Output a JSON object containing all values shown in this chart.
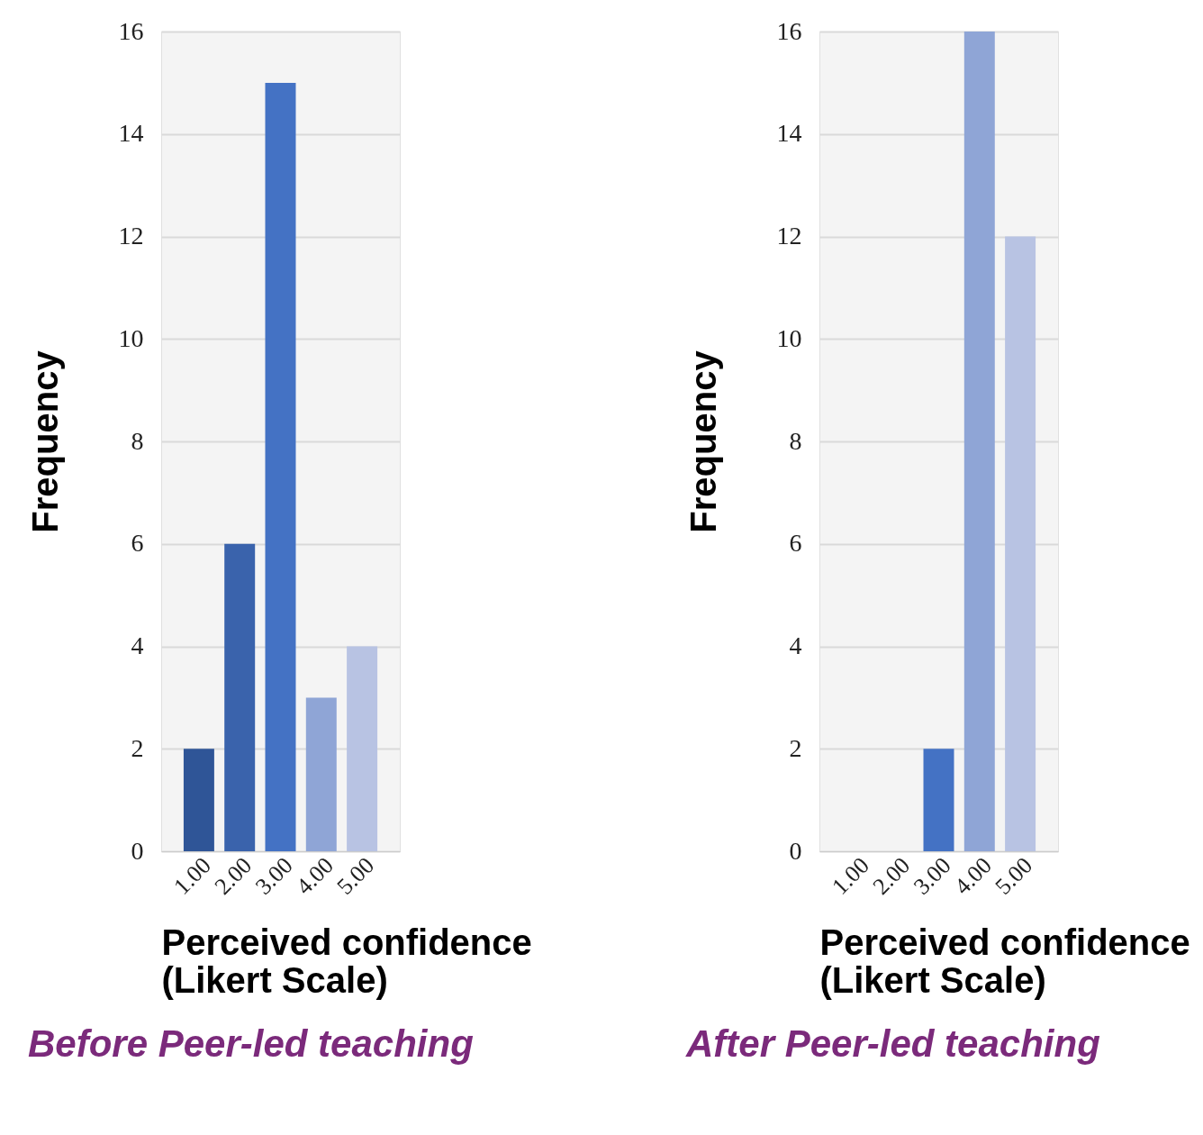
{
  "chart_data": [
    {
      "type": "bar",
      "title": "Before Peer-led teaching",
      "xlabel": "Perceived confidence\n(Likert Scale)",
      "ylabel": "Frequency",
      "categories": [
        "1.00",
        "2.00",
        "3.00",
        "4.00",
        "5.00"
      ],
      "values": [
        2,
        6,
        15,
        3,
        4
      ],
      "colors": [
        "#2f5597",
        "#3a63ac",
        "#4472c4",
        "#8fa5d6",
        "#b8c3e3"
      ],
      "ylim": [
        0,
        16
      ],
      "yticks": [
        0,
        2,
        4,
        6,
        8,
        10,
        12,
        14,
        16
      ],
      "grid": "y",
      "legend": false
    },
    {
      "type": "bar",
      "title": "After Peer-led teaching",
      "xlabel": "Perceived confidence\n(Likert Scale)",
      "ylabel": "Frequency",
      "categories": [
        "1.00",
        "2.00",
        "3.00",
        "4.00",
        "5.00"
      ],
      "values": [
        0,
        0,
        2,
        16,
        12
      ],
      "colors": [
        "#2f5597",
        "#3a63ac",
        "#4472c4",
        "#8fa5d6",
        "#b8c3e3"
      ],
      "ylim": [
        0,
        16
      ],
      "yticks": [
        0,
        2,
        4,
        6,
        8,
        10,
        12,
        14,
        16
      ],
      "grid": "y",
      "legend": false
    }
  ]
}
